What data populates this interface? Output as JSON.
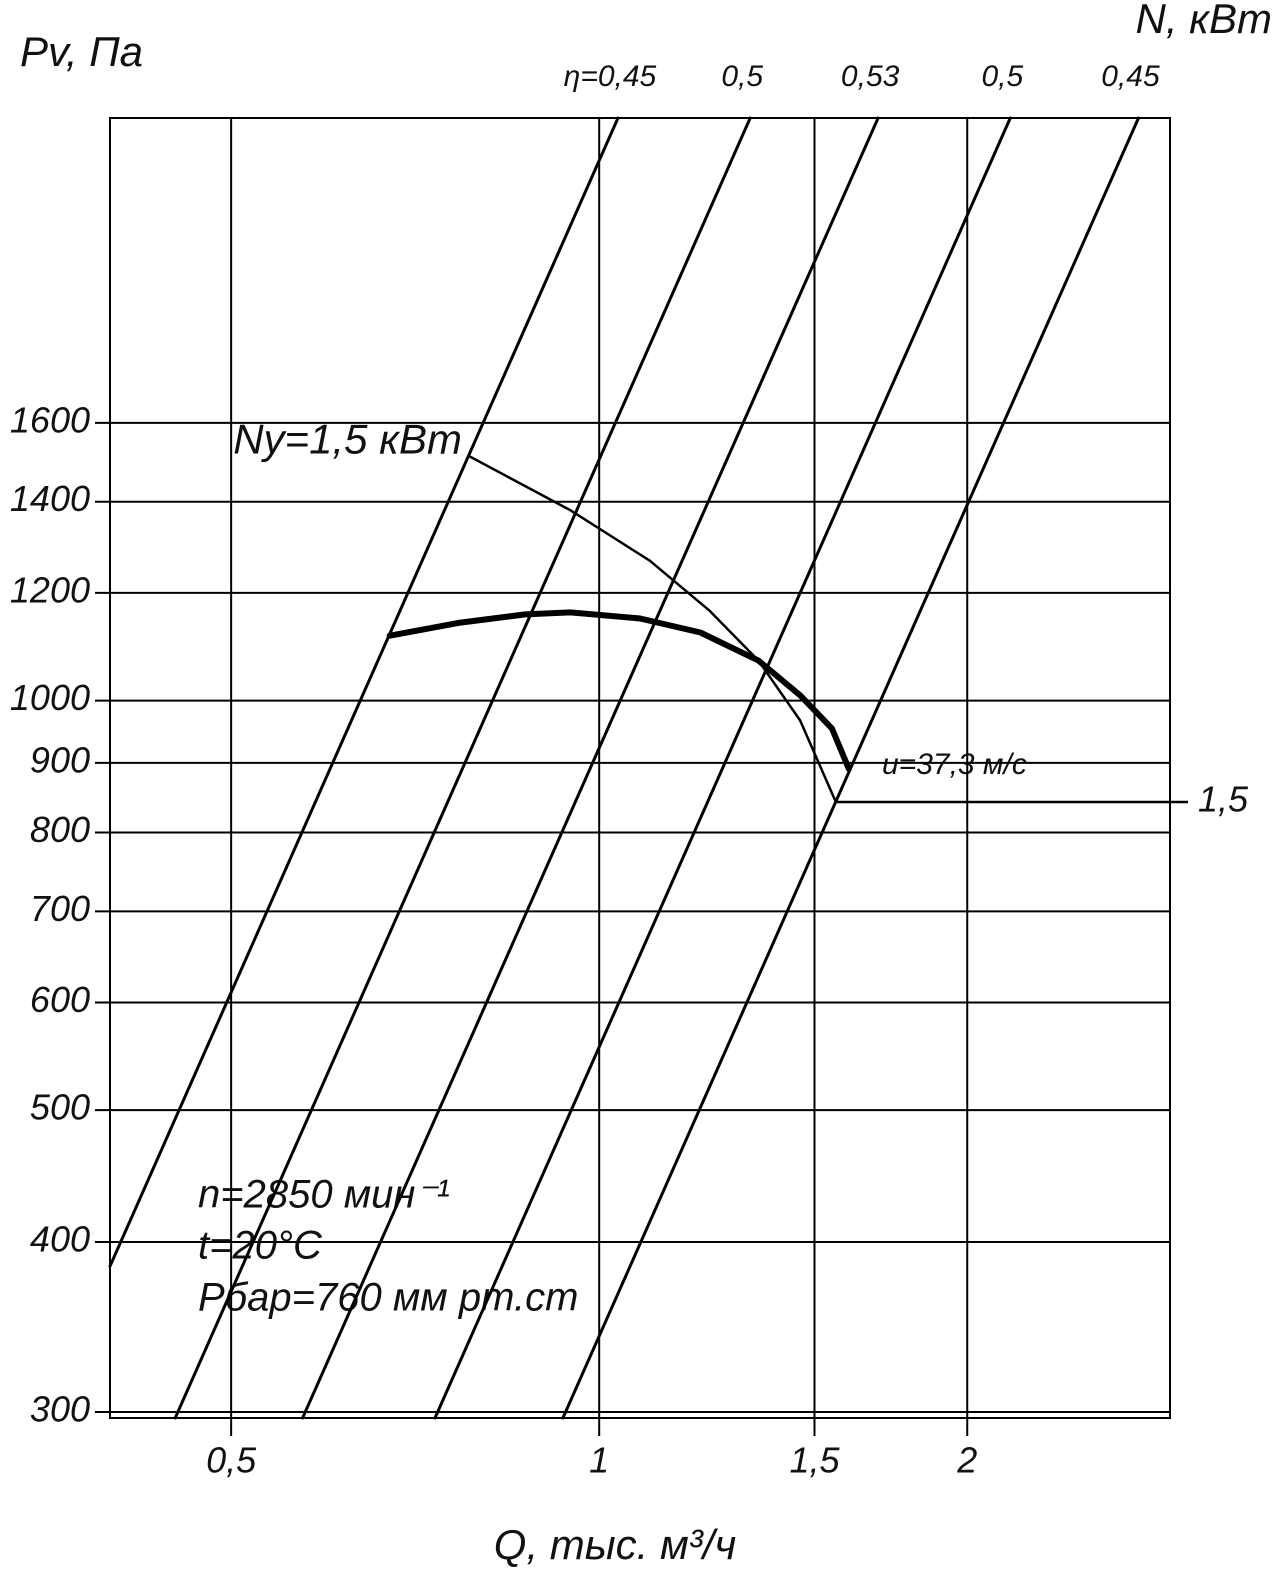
{
  "chart_data": {
    "type": "line",
    "x_label": "Q, тыс. м³/ч",
    "y_label": "Pv, Па",
    "y2_label": "N, кВт",
    "xscale": "log",
    "yscale": "log",
    "grid": true,
    "xlim": [
      0.398,
      2.93
    ],
    "xticks": [
      {
        "value": 0.5,
        "label": "0,5"
      },
      1,
      {
        "value": 1.5,
        "label": "1,5"
      },
      2
    ],
    "ylim": [
      297,
      2680
    ],
    "yticks": [
      300,
      400,
      500,
      600,
      700,
      800,
      900,
      1000,
      1200,
      1400,
      1600
    ],
    "series": [
      {
        "x": [
          0.674,
          0.77,
          0.87,
          0.947,
          1.08,
          1.21,
          1.35,
          1.46,
          1.55,
          1.6
        ],
        "values": [
          1116,
          1141,
          1157,
          1161,
          1149,
          1122,
          1070,
          1009,
          954,
          891
        ],
        "color": "#000000",
        "linewidth": 6
      },
      {
        "name": "Ny=1,5 кВт",
        "name_position": "start",
        "x": [
          0.784,
          0.947,
          1.1,
          1.23,
          1.35,
          1.46,
          1.56
        ],
        "values": [
          1511,
          1380,
          1267,
          1165,
          1070,
          967,
          844
        ],
        "color": "#000000",
        "linewidth": 2.5
      },
      {
        "name": "η=0,45",
        "name_position": "end",
        "x": [
          0.398,
          1.036
        ],
        "values": [
          384,
          2680
        ],
        "color": "#000000",
        "linewidth": 3
      },
      {
        "name": "0,5",
        "name_position": "end",
        "x": [
          0.45,
          1.329
        ],
        "values": [
          297,
          2680
        ],
        "color": "#000000",
        "linewidth": 3
      },
      {
        "name": "0,53",
        "name_position": "end",
        "x": [
          0.572,
          1.691
        ],
        "values": [
          297,
          2680
        ],
        "color": "#000000",
        "linewidth": 3
      },
      {
        "name": "0,5",
        "name_position": "end",
        "x": [
          0.734,
          2.169
        ],
        "values": [
          297,
          2680
        ],
        "color": "#000000",
        "linewidth": 3
      },
      {
        "name": "0,45",
        "name_position": "end",
        "x": [
          0.934,
          2.761
        ],
        "values": [
          297,
          2680
        ],
        "color": "#000000",
        "linewidth": 3
      }
    ],
    "annotations": {
      "speed": "u=37,3 м/с",
      "power_mark": "1,5",
      "notes": [
        "n=2850 мин⁻¹",
        "t=20°C",
        "Рбар=760 мм рт.ст"
      ]
    }
  }
}
